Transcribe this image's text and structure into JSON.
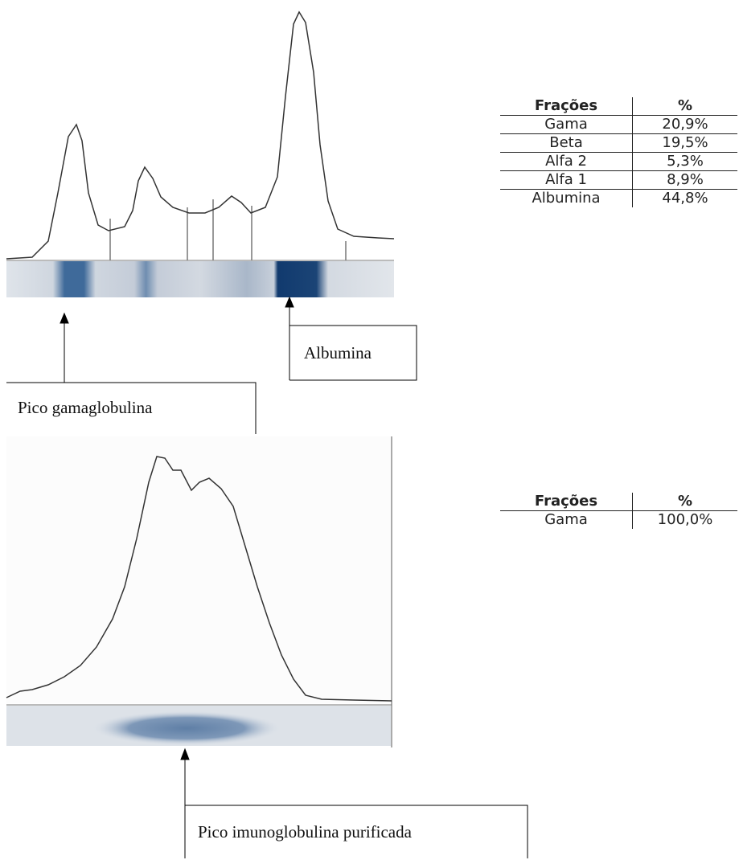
{
  "figure_top": {
    "table": {
      "header": [
        "Frações",
        "%"
      ],
      "rows": [
        [
          "Gama",
          "20,9%"
        ],
        [
          "Beta",
          "19,5%"
        ],
        [
          "Alfa 2",
          "5,3%"
        ],
        [
          "Alfa 1",
          "8,9%"
        ],
        [
          "Albumina",
          "44,8%"
        ]
      ]
    },
    "callouts": [
      "Albumina",
      "Pico gamaglobulina"
    ]
  },
  "figure_bottom": {
    "table": {
      "header": [
        "Frações",
        "%"
      ],
      "rows": [
        [
          "Gama",
          "100,0%"
        ]
      ]
    },
    "callouts": [
      "Pico imunoglobulina purificada"
    ]
  }
}
